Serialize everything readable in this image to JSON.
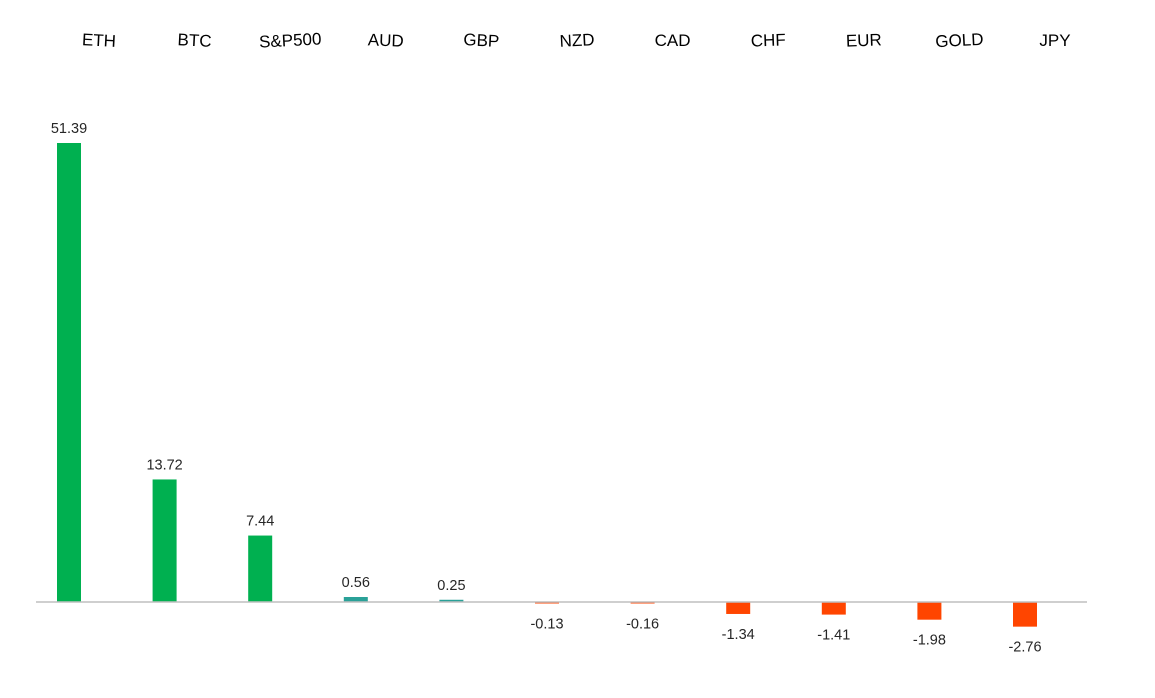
{
  "chart_data": {
    "type": "bar",
    "categories": [
      "ETH",
      "BTC",
      "S&P500",
      "AUD",
      "GBP",
      "NZD",
      "CAD",
      "CHF",
      "EUR",
      "GOLD",
      "JPY"
    ],
    "values": [
      51.39,
      13.72,
      7.44,
      0.56,
      0.25,
      -0.13,
      -0.16,
      -1.34,
      -1.41,
      -1.98,
      -2.76
    ],
    "value_labels": [
      "51.39",
      "13.72",
      "7.44",
      "0.56",
      "0.25",
      "-0.13",
      "-0.16",
      "-1.34",
      "-1.41",
      "-1.98",
      "-2.76"
    ],
    "title": "",
    "xlabel": "",
    "ylabel": "",
    "ylim": [
      -3,
      52
    ],
    "legend": "none",
    "grid": false,
    "category_axis_position": "top",
    "colors": {
      "positive_large": "#00b050",
      "positive_small": "#2aa198",
      "negative": "#ff4500",
      "axis": "#bfbfbf"
    }
  }
}
